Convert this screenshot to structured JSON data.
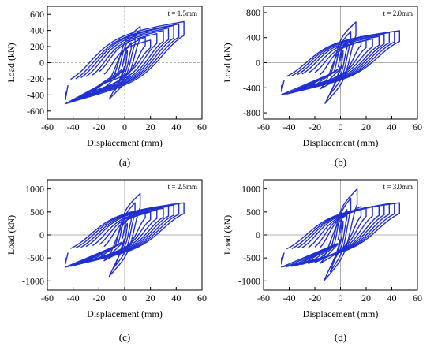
{
  "figure": {
    "colors": {
      "curve": "#1f2fd0",
      "axis": "#000000",
      "zero_line": "#999999",
      "background": "#ffffff"
    }
  },
  "chart_data": [
    {
      "type": "line",
      "caption": "(a)",
      "annotation": "t = 1.5mm",
      "xlabel": "Displacement (mm)",
      "ylabel": "Load (kN)",
      "xlim": [
        -60,
        60
      ],
      "ylim": [
        -700,
        700
      ],
      "xticks": [
        -60,
        -40,
        -20,
        0,
        20,
        40,
        60
      ],
      "yticks": [
        -600,
        -400,
        -200,
        0,
        200,
        400,
        600
      ],
      "zero_line_style": "dashed",
      "cycles": [
        {
          "d": 2,
          "p": 150
        },
        {
          "d": 5,
          "p": 250
        },
        {
          "d": 8,
          "p": 350
        },
        {
          "d": 12,
          "p": 450
        },
        {
          "d": 16,
          "p": 320
        },
        {
          "d": 20,
          "p": 280
        },
        {
          "d": 25,
          "p": 360
        },
        {
          "d": 30,
          "p": 400
        },
        {
          "d": 34,
          "p": 430
        },
        {
          "d": 38,
          "p": 460
        },
        {
          "d": 42,
          "p": 480
        },
        {
          "d": 46,
          "p": 510
        }
      ],
      "series": [
        {
          "values_note": "hysteresis loops"
        }
      ]
    },
    {
      "type": "line",
      "caption": "(b)",
      "annotation": "t = 2.0mm",
      "xlabel": "Displacement (mm)",
      "ylabel": "Load (kN)",
      "xlim": [
        -60,
        60
      ],
      "ylim": [
        -900,
        900
      ],
      "xticks": [
        -60,
        -40,
        -20,
        0,
        20,
        40,
        60
      ],
      "yticks": [
        -800,
        -400,
        0,
        400,
        800
      ],
      "zero_line_style": "solid",
      "cycles": [
        {
          "d": 2,
          "p": 200
        },
        {
          "d": 5,
          "p": 350
        },
        {
          "d": 8,
          "p": 500
        },
        {
          "d": 12,
          "p": 650
        },
        {
          "d": 16,
          "p": 420
        },
        {
          "d": 20,
          "p": 360
        },
        {
          "d": 25,
          "p": 380
        },
        {
          "d": 30,
          "p": 420
        },
        {
          "d": 34,
          "p": 450
        },
        {
          "d": 38,
          "p": 480
        },
        {
          "d": 42,
          "p": 500
        },
        {
          "d": 46,
          "p": 510
        }
      ],
      "series": [
        {
          "values_note": "hysteresis loops"
        }
      ]
    },
    {
      "type": "line",
      "caption": "(c)",
      "annotation": "t = 2.5mm",
      "xlabel": "Displacement (mm)",
      "ylabel": "Load (kN)",
      "xlim": [
        -60,
        60
      ],
      "ylim": [
        -1200,
        1200
      ],
      "xticks": [
        -60,
        -40,
        -20,
        0,
        20,
        40,
        60
      ],
      "yticks": [
        -1000,
        -500,
        0,
        500,
        1000
      ],
      "zero_line_style": "solid",
      "cycles": [
        {
          "d": 2,
          "p": 250
        },
        {
          "d": 5,
          "p": 450
        },
        {
          "d": 8,
          "p": 700
        },
        {
          "d": 12,
          "p": 900
        },
        {
          "d": 16,
          "p": 560
        },
        {
          "d": 20,
          "p": 500
        },
        {
          "d": 25,
          "p": 540
        },
        {
          "d": 30,
          "p": 580
        },
        {
          "d": 34,
          "p": 620
        },
        {
          "d": 38,
          "p": 650
        },
        {
          "d": 42,
          "p": 680
        },
        {
          "d": 46,
          "p": 700
        }
      ],
      "series": [
        {
          "values_note": "hysteresis loops"
        }
      ]
    },
    {
      "type": "line",
      "caption": "(d)",
      "annotation": "t = 3.0mm",
      "xlabel": "Displacement (mm)",
      "ylabel": "Load (kN)",
      "xlim": [
        -60,
        60
      ],
      "ylim": [
        -1200,
        1200
      ],
      "xticks": [
        -60,
        -40,
        -20,
        0,
        20,
        40,
        60
      ],
      "yticks": [
        -1000,
        -500,
        0,
        500,
        1000
      ],
      "zero_line_style": "solid",
      "cycles": [
        {
          "d": 2,
          "p": 300
        },
        {
          "d": 5,
          "p": 550
        },
        {
          "d": 8,
          "p": 800
        },
        {
          "d": 13,
          "p": 1000
        },
        {
          "d": 16,
          "p": 620
        },
        {
          "d": 20,
          "p": 600
        },
        {
          "d": 25,
          "p": 620
        },
        {
          "d": 30,
          "p": 640
        },
        {
          "d": 34,
          "p": 660
        },
        {
          "d": 38,
          "p": 680
        },
        {
          "d": 42,
          "p": 690
        },
        {
          "d": 46,
          "p": 700
        }
      ],
      "series": [
        {
          "values_note": "hysteresis loops"
        }
      ]
    }
  ]
}
